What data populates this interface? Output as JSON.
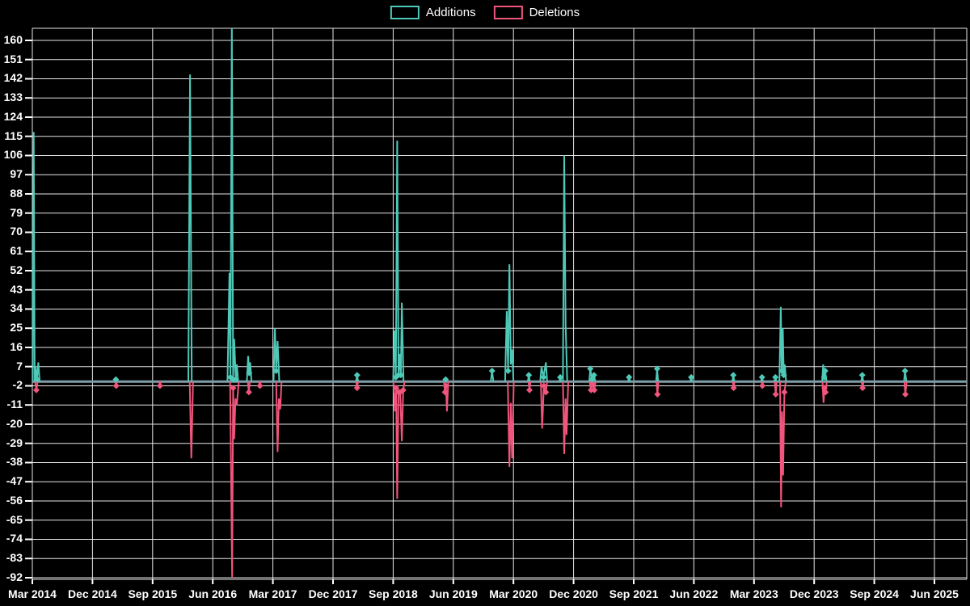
{
  "legend": {
    "items": [
      {
        "label": "Additions",
        "color": "#4EC9B8"
      },
      {
        "label": "Deletions",
        "color": "#F0557C"
      }
    ]
  },
  "chart_data": {
    "type": "line",
    "title": "",
    "xlabel": "",
    "ylabel": "",
    "grid": true,
    "legend_position": "top-center",
    "background_color": "#000000",
    "gridline_color": "#e6e6e6",
    "baseline_color": "#7E9DA9",
    "baseline_value": 0,
    "y_axis": {
      "ticks": [
        160,
        151,
        142,
        133,
        124,
        115,
        106,
        97,
        88,
        79,
        70,
        61,
        52,
        43,
        34,
        25,
        16,
        7,
        -2,
        -11,
        -20,
        -29,
        -38,
        -47,
        -56,
        -65,
        -74,
        -83,
        -92
      ],
      "tick_step": 9,
      "min": -92,
      "max": 160
    },
    "x_axis": {
      "labels": [
        "Mar 2014",
        "Dec 2014",
        "Sep 2015",
        "Jun 2016",
        "Mar 2017",
        "Dec 2017",
        "Sep 2018",
        "Jun 2019",
        "Mar 2020",
        "Dec 2020",
        "Sep 2021",
        "Jun 2022",
        "Mar 2023",
        "Dec 2023",
        "Sep 2024",
        "Jun 2025"
      ],
      "label_interval_months": 9,
      "months_span": 135
    },
    "series": [
      {
        "name": "Additions",
        "color": "#4EC9B8",
        "points_format": "[months_since_Mar_2014, value]",
        "bursts": [
          [
            [
              0.05,
              0
            ],
            [
              0.2,
              117
            ],
            [
              0.35,
              0
            ],
            [
              0.5,
              7
            ],
            [
              0.7,
              1
            ],
            [
              0.9,
              9
            ],
            [
              1.1,
              0
            ]
          ],
          [
            [
              12.3,
              0
            ],
            [
              12.5,
              1
            ],
            [
              12.7,
              0
            ]
          ],
          [
            [
              23.35,
              0
            ],
            [
              23.6,
              144
            ],
            [
              23.85,
              0
            ]
          ],
          [
            [
              29.2,
              0
            ],
            [
              29.5,
              51
            ],
            [
              29.65,
              2
            ],
            [
              29.85,
              170
            ],
            [
              30.05,
              1
            ],
            [
              30.2,
              20
            ],
            [
              30.45,
              1
            ],
            [
              30.6,
              8
            ],
            [
              30.8,
              0
            ]
          ],
          [
            [
              32.1,
              0
            ],
            [
              32.3,
              12
            ],
            [
              32.45,
              4
            ],
            [
              32.6,
              9
            ],
            [
              32.8,
              0
            ]
          ],
          [
            [
              36.1,
              0
            ],
            [
              36.3,
              25
            ],
            [
              36.5,
              5
            ],
            [
              36.7,
              19
            ],
            [
              36.95,
              0
            ]
          ],
          [
            [
              48.45,
              0
            ],
            [
              48.6,
              3
            ],
            [
              48.75,
              0
            ]
          ],
          [
            [
              54.0,
              0
            ],
            [
              54.2,
              24
            ],
            [
              54.4,
              2
            ],
            [
              54.6,
              113
            ],
            [
              54.8,
              3
            ],
            [
              55.0,
              13
            ],
            [
              55.15,
              3
            ],
            [
              55.3,
              37
            ],
            [
              55.55,
              0
            ]
          ],
          [
            [
              61.7,
              0
            ],
            [
              61.85,
              1
            ],
            [
              62.0,
              0
            ]
          ],
          [
            [
              68.6,
              0
            ],
            [
              68.8,
              5
            ],
            [
              69.0,
              0
            ]
          ],
          [
            [
              70.75,
              0
            ],
            [
              71.0,
              33
            ],
            [
              71.2,
              5
            ],
            [
              71.4,
              55
            ],
            [
              71.6,
              8
            ],
            [
              71.8,
              15
            ],
            [
              72.0,
              0
            ]
          ],
          [
            [
              74.15,
              0
            ],
            [
              74.3,
              3
            ],
            [
              74.45,
              0
            ]
          ],
          [
            [
              76.0,
              0
            ],
            [
              76.2,
              7
            ],
            [
              76.5,
              2
            ],
            [
              76.85,
              9
            ],
            [
              77.05,
              0
            ]
          ],
          [
            [
              78.85,
              0
            ],
            [
              79.0,
              2
            ],
            [
              79.15,
              0
            ]
          ],
          [
            [
              79.4,
              0
            ],
            [
              79.6,
              106
            ],
            [
              79.8,
              27
            ],
            [
              80.05,
              0
            ]
          ],
          [
            [
              83.35,
              0
            ],
            [
              83.5,
              6
            ],
            [
              83.75,
              1
            ],
            [
              84.05,
              3
            ],
            [
              84.25,
              0
            ]
          ],
          [
            [
              89.15,
              0
            ],
            [
              89.3,
              2
            ],
            [
              89.45,
              0
            ]
          ],
          [
            [
              93.35,
              0
            ],
            [
              93.5,
              6
            ],
            [
              93.65,
              0
            ]
          ],
          [
            [
              98.45,
              0
            ],
            [
              98.6,
              2
            ],
            [
              98.75,
              0
            ]
          ],
          [
            [
              104.75,
              0
            ],
            [
              104.9,
              3
            ],
            [
              105.05,
              0
            ]
          ],
          [
            [
              109.05,
              0
            ],
            [
              109.2,
              2
            ],
            [
              109.35,
              0
            ]
          ],
          [
            [
              111.05,
              0
            ],
            [
              111.2,
              2
            ],
            [
              111.35,
              0
            ]
          ],
          [
            [
              111.8,
              0
            ],
            [
              112.0,
              35
            ],
            [
              112.15,
              5
            ],
            [
              112.3,
              25
            ],
            [
              112.45,
              3
            ],
            [
              112.6,
              8
            ],
            [
              112.8,
              0
            ]
          ],
          [
            [
              118.2,
              0
            ],
            [
              118.35,
              8
            ],
            [
              118.5,
              2
            ],
            [
              118.65,
              5
            ],
            [
              118.85,
              0
            ]
          ],
          [
            [
              124.05,
              0
            ],
            [
              124.2,
              3
            ],
            [
              124.35,
              0
            ]
          ],
          [
            [
              130.45,
              0
            ],
            [
              130.6,
              5
            ],
            [
              130.8,
              0
            ]
          ]
        ]
      },
      {
        "name": "Deletions",
        "color": "#F0557C",
        "points_format": "[months_since_Mar_2014, value]",
        "bursts": [
          [
            [
              0.4,
              0
            ],
            [
              0.6,
              -4
            ],
            [
              0.8,
              0
            ]
          ],
          [
            [
              12.4,
              0
            ],
            [
              12.55,
              -2
            ],
            [
              12.7,
              0
            ]
          ],
          [
            [
              18.95,
              0
            ],
            [
              19.1,
              -2
            ],
            [
              19.25,
              0
            ]
          ],
          [
            [
              23.55,
              0
            ],
            [
              23.8,
              -36
            ],
            [
              24.05,
              0
            ]
          ],
          [
            [
              29.6,
              0
            ],
            [
              29.9,
              -92
            ],
            [
              30.05,
              -3
            ],
            [
              30.2,
              -27
            ],
            [
              30.4,
              -8
            ],
            [
              30.6,
              -11
            ],
            [
              30.9,
              0
            ]
          ],
          [
            [
              32.25,
              0
            ],
            [
              32.4,
              -5
            ],
            [
              32.55,
              0
            ]
          ],
          [
            [
              33.9,
              0
            ],
            [
              34.05,
              -2
            ],
            [
              34.2,
              0
            ]
          ],
          [
            [
              36.5,
              0
            ],
            [
              36.7,
              -33
            ],
            [
              36.9,
              -8
            ],
            [
              37.1,
              -13
            ],
            [
              37.3,
              0
            ]
          ],
          [
            [
              48.45,
              0
            ],
            [
              48.6,
              -3
            ],
            [
              48.75,
              0
            ]
          ],
          [
            [
              54.05,
              0
            ],
            [
              54.25,
              -14
            ],
            [
              54.45,
              -3
            ],
            [
              54.6,
              -55
            ],
            [
              54.8,
              -5
            ],
            [
              55.05,
              -5
            ],
            [
              55.3,
              -28
            ],
            [
              55.5,
              -4
            ],
            [
              55.7,
              0
            ]
          ],
          [
            [
              61.6,
              0
            ],
            [
              61.75,
              -5
            ],
            [
              61.9,
              -2
            ],
            [
              62.05,
              -14
            ],
            [
              62.25,
              0
            ]
          ],
          [
            [
              71.15,
              0
            ],
            [
              71.4,
              -40
            ],
            [
              71.6,
              -10
            ],
            [
              71.8,
              -36
            ],
            [
              72.05,
              0
            ]
          ],
          [
            [
              74.25,
              0
            ],
            [
              74.4,
              -4
            ],
            [
              74.55,
              0
            ]
          ],
          [
            [
              76.1,
              0
            ],
            [
              76.3,
              -22
            ],
            [
              76.55,
              -2
            ],
            [
              76.85,
              -5
            ],
            [
              77.05,
              0
            ]
          ],
          [
            [
              79.4,
              0
            ],
            [
              79.6,
              -34
            ],
            [
              79.8,
              -8
            ],
            [
              79.95,
              -25
            ],
            [
              80.2,
              0
            ]
          ],
          [
            [
              83.4,
              0
            ],
            [
              83.6,
              -4
            ],
            [
              83.8,
              -1
            ],
            [
              84.1,
              -4
            ],
            [
              84.3,
              0
            ]
          ],
          [
            [
              93.4,
              0
            ],
            [
              93.55,
              -6
            ],
            [
              93.7,
              0
            ]
          ],
          [
            [
              104.8,
              0
            ],
            [
              104.95,
              -3
            ],
            [
              105.1,
              0
            ]
          ],
          [
            [
              109.1,
              0
            ],
            [
              109.25,
              -2
            ],
            [
              109.4,
              0
            ]
          ],
          [
            [
              111.1,
              0
            ],
            [
              111.25,
              -6
            ],
            [
              111.4,
              0
            ]
          ],
          [
            [
              111.9,
              0
            ],
            [
              112.05,
              -59
            ],
            [
              112.2,
              -14
            ],
            [
              112.35,
              -44
            ],
            [
              112.55,
              -5
            ],
            [
              112.75,
              0
            ]
          ],
          [
            [
              118.25,
              0
            ],
            [
              118.4,
              -10
            ],
            [
              118.55,
              -3
            ],
            [
              118.7,
              -5
            ],
            [
              118.9,
              0
            ]
          ],
          [
            [
              124.1,
              0
            ],
            [
              124.25,
              -3
            ],
            [
              124.4,
              0
            ]
          ],
          [
            [
              130.5,
              0
            ],
            [
              130.65,
              -6
            ],
            [
              130.85,
              0
            ]
          ]
        ]
      }
    ]
  }
}
